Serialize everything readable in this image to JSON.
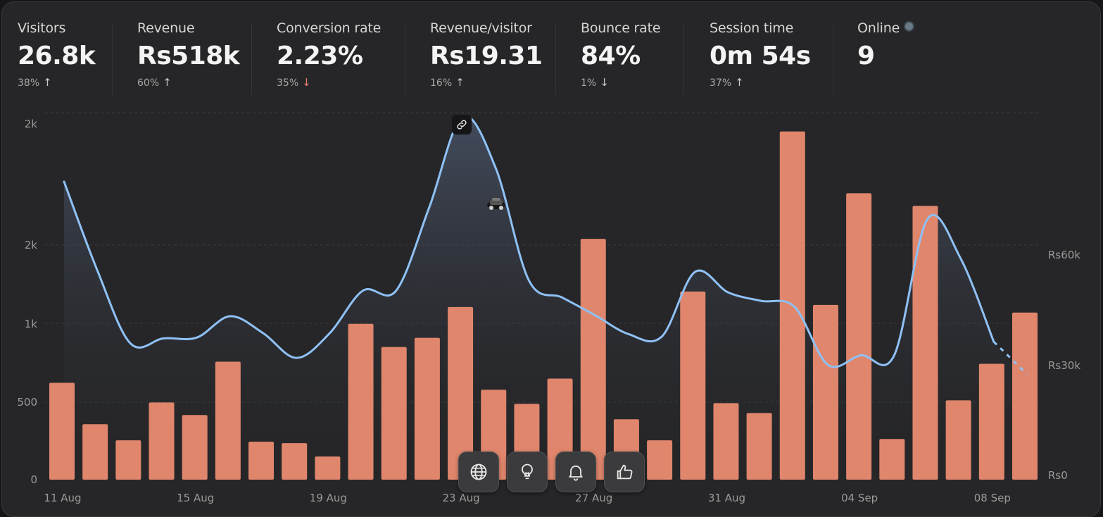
{
  "stats": [
    {
      "label": "Visitors",
      "value": "26.8k",
      "delta": "38%",
      "dir": "up"
    },
    {
      "label": "Revenue",
      "value": "Rs518k",
      "delta": "60%",
      "dir": "up"
    },
    {
      "label": "Conversion rate",
      "value": "2.23%",
      "delta": "35%",
      "dir": "down-bad"
    },
    {
      "label": "Revenue/visitor",
      "value": "Rs19.31",
      "delta": "16%",
      "dir": "up"
    },
    {
      "label": "Bounce rate",
      "value": "84%",
      "delta": "1%",
      "dir": "down"
    },
    {
      "label": "Session time",
      "value": "0m 54s",
      "delta": "37%",
      "dir": "up"
    },
    {
      "label": "Online",
      "value": "9",
      "delta": "",
      "dir": ""
    }
  ],
  "arrows": {
    "up": "↑",
    "down": "↓"
  },
  "colors": {
    "line": "#8fc1f5",
    "bar": "#e0866c",
    "grid": "#3a3a3e",
    "axis_text": "#9a9a9a",
    "background": "#262628"
  },
  "toolbar": [
    {
      "name": "globe-icon"
    },
    {
      "name": "lightbulb-icon"
    },
    {
      "name": "bell-icon"
    },
    {
      "name": "thumbs-up-icon"
    }
  ],
  "chart_data": {
    "type": "bar+line",
    "x_tick_labels": [
      "11 Aug",
      "15 Aug",
      "19 Aug",
      "23 Aug",
      "27 Aug",
      "31 Aug",
      "04 Sep",
      "08 Sep"
    ],
    "left_axis_ticks": [
      "2k",
      "2k",
      "1k",
      "500",
      "0"
    ],
    "right_axis_ticks": [
      "Rs60k",
      "Rs30k",
      "Rs0"
    ],
    "grid": true,
    "series": [
      {
        "axis": "left",
        "type": "line",
        "values": [
          1750,
          1230,
          800,
          830,
          835,
          960,
          860,
          715,
          860,
          1110,
          1110,
          1600,
          2130,
          1830,
          1170,
          1070,
          965,
          855,
          840,
          1220,
          1100,
          1050,
          1015,
          675,
          730,
          730,
          1530,
          1300,
          810,
          620
        ],
        "dashed_from_index": 28
      },
      {
        "axis": "right",
        "type": "bar",
        "values": [
          13.8,
          7.9,
          5.6,
          11.0,
          9.2,
          16.8,
          5.4,
          5.2,
          3.3,
          22.2,
          18.9,
          20.2,
          24.6,
          12.8,
          10.8,
          14.4,
          34.3,
          8.6,
          5.6,
          26.8,
          10.9,
          9.5,
          49.6,
          24.9,
          40.8,
          5.8,
          39.0,
          11.3,
          16.5,
          23.8
        ]
      }
    ],
    "left_ylim": [
      0,
      2300
    ],
    "right_ylim": [
      0,
      60000
    ]
  }
}
